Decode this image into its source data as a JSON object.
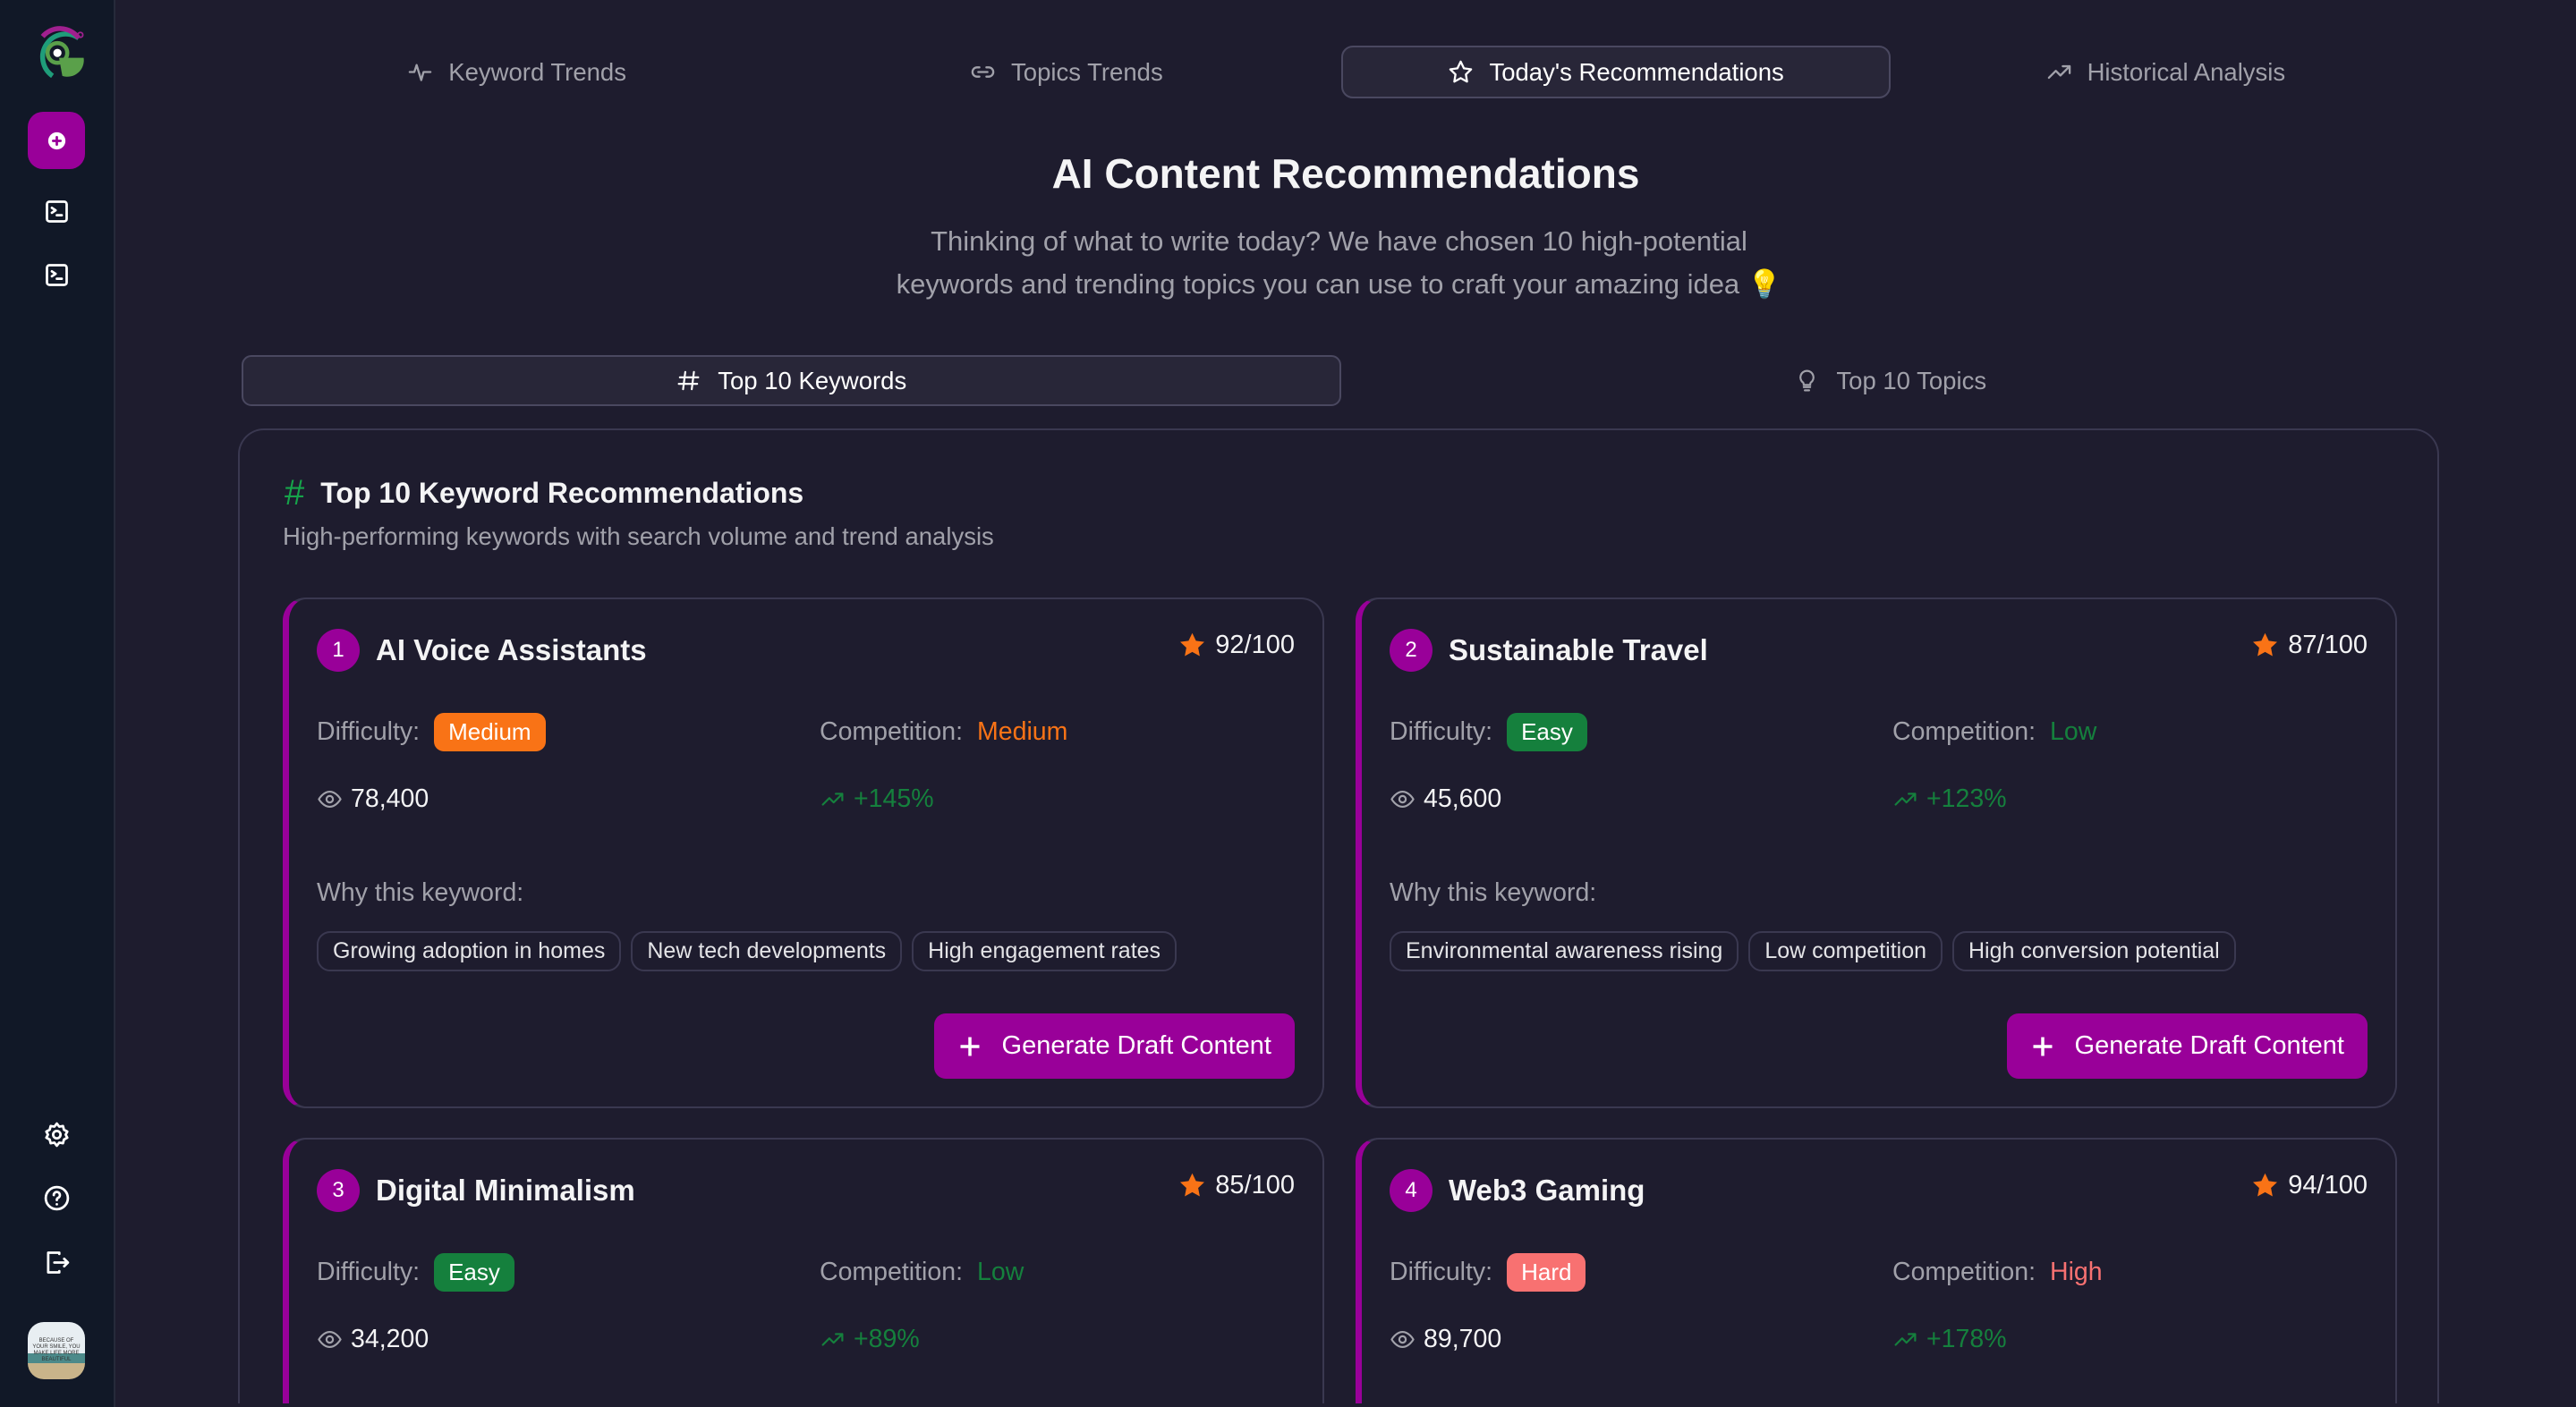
{
  "sidebar": {
    "items": [
      "new-icon",
      "terminal-icon",
      "terminal-icon"
    ],
    "bottom": [
      "settings-icon",
      "help-icon",
      "logout-icon"
    ],
    "avatar_text": "BECAUSE OF YOUR SMILE, YOU MAKE LIFE MORE BEAUTIFUL"
  },
  "tabs": [
    {
      "label": "Keyword Trends",
      "icon": "activity-icon"
    },
    {
      "label": "Topics Trends",
      "icon": "link-icon"
    },
    {
      "label": "Today's Recommendations",
      "icon": "star-icon",
      "active": true
    },
    {
      "label": "Historical Analysis",
      "icon": "trending-up-icon"
    }
  ],
  "header": {
    "title": "AI Content Recommendations",
    "subtitle_line1": "Thinking of what to write today? We have chosen 10 high-potential",
    "subtitle_line2": "keywords and trending topics you can use to craft your amazing idea 💡"
  },
  "subtabs": [
    {
      "label": "Top 10 Keywords",
      "icon": "hash-icon",
      "active": true
    },
    {
      "label": "Top 10 Topics",
      "icon": "lightbulb-icon"
    }
  ],
  "panel": {
    "title": "Top 10 Keyword Recommendations",
    "subtitle": "High-performing keywords with search volume and trend analysis"
  },
  "labels": {
    "difficulty": "Difficulty:",
    "competition": "Competition:",
    "why": "Why this keyword:",
    "generate": "Generate Draft Content"
  },
  "colors": {
    "accent": "#990099",
    "Easy": "#15803d",
    "Medium": "#f97316",
    "Hard": "#f87171",
    "Low": "#15803d",
    "High": "#f87171"
  },
  "cards": [
    {
      "rank": "1",
      "keyword": "AI Voice Assistants",
      "score": "92/100",
      "difficulty": "Medium",
      "competition": "Medium",
      "volume": "78,400",
      "trend": "+145%",
      "reasons": [
        "Growing adoption in homes",
        "New tech developments",
        "High engagement rates"
      ]
    },
    {
      "rank": "2",
      "keyword": "Sustainable Travel",
      "score": "87/100",
      "difficulty": "Easy",
      "competition": "Low",
      "volume": "45,600",
      "trend": "+123%",
      "reasons": [
        "Environmental awareness rising",
        "Low competition",
        "High conversion potential"
      ]
    },
    {
      "rank": "3",
      "keyword": "Digital Minimalism",
      "score": "85/100",
      "difficulty": "Easy",
      "competition": "Low",
      "volume": "34,200",
      "trend": "+89%",
      "reasons": []
    },
    {
      "rank": "4",
      "keyword": "Web3 Gaming",
      "score": "94/100",
      "difficulty": "Hard",
      "competition": "High",
      "volume": "89,700",
      "trend": "+178%",
      "reasons": []
    }
  ]
}
